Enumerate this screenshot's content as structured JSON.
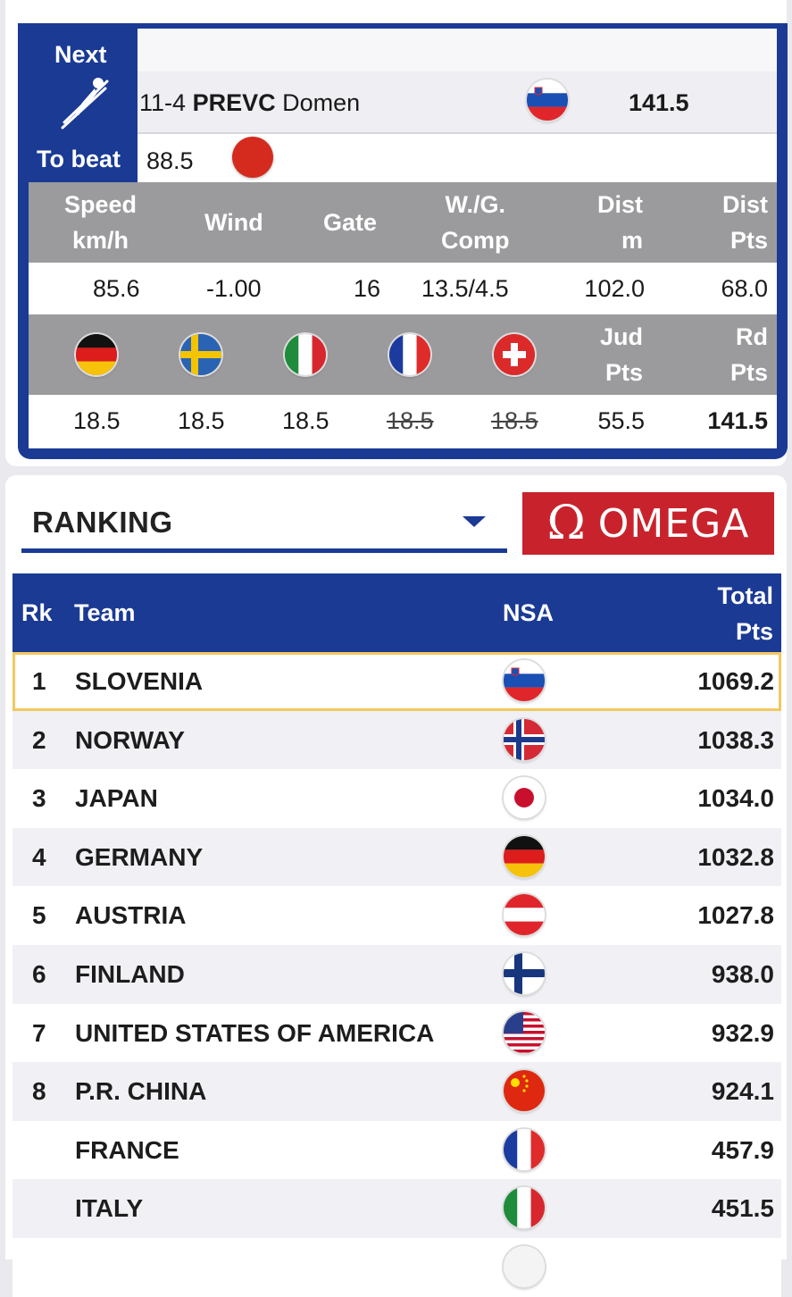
{
  "next_panel": {
    "next_label": "Next",
    "to_beat_label": "To beat",
    "athlete_bib": "11-4",
    "athlete_surname": "PREVC",
    "athlete_firstname": "Domen",
    "athlete_nsa_flag": "slovenia-flag",
    "athlete_score": "141.5",
    "to_beat_value": "88.5",
    "to_beat_indicator_color": "#d42b1e",
    "stats_headers": [
      {
        "line1": "Speed",
        "line2": "km/h"
      },
      {
        "line1": "Wind",
        "line2": ""
      },
      {
        "line1": "Gate",
        "line2": ""
      },
      {
        "line1": "W./G.",
        "line2": "Comp"
      },
      {
        "line1": "Dist",
        "line2": "m"
      },
      {
        "line1": "Dist",
        "line2": "Pts"
      }
    ],
    "stats_values": [
      "85.6",
      "-1.00",
      "16",
      "13.5/4.5",
      "102.0",
      "68.0"
    ],
    "judges": [
      {
        "flag": "germany-flag",
        "score": "18.5",
        "discarded": false
      },
      {
        "flag": "sweden-flag",
        "score": "18.5",
        "discarded": false
      },
      {
        "flag": "italy-flag",
        "score": "18.5",
        "discarded": false
      },
      {
        "flag": "france-flag",
        "score": "18.5",
        "discarded": true
      },
      {
        "flag": "switzerland-flag",
        "score": "18.5",
        "discarded": true
      }
    ],
    "jud_header": {
      "line1": "Jud",
      "line2": "Pts"
    },
    "rd_header": {
      "line1": "Rd",
      "line2": "Pts"
    },
    "jud_pts": "55.5",
    "rd_pts": "141.5"
  },
  "ranking": {
    "selector_label": "RANKING",
    "sponsor": "OMEGA",
    "sponsor_color": "#c8232c",
    "headers": {
      "rk": "Rk",
      "team": "Team",
      "nsa": "NSA",
      "total_line1": "Total",
      "total_line2": "Pts"
    },
    "rows": [
      {
        "rk": "1",
        "team": "SLOVENIA",
        "flag": "slovenia-flag",
        "pts": "1069.2"
      },
      {
        "rk": "2",
        "team": "NORWAY",
        "flag": "norway-flag",
        "pts": "1038.3"
      },
      {
        "rk": "3",
        "team": "JAPAN",
        "flag": "japan-flag",
        "pts": "1034.0"
      },
      {
        "rk": "4",
        "team": "GERMANY",
        "flag": "germany-flag",
        "pts": "1032.8"
      },
      {
        "rk": "5",
        "team": "AUSTRIA",
        "flag": "austria-flag",
        "pts": "1027.8"
      },
      {
        "rk": "6",
        "team": "FINLAND",
        "flag": "finland-flag",
        "pts": "938.0"
      },
      {
        "rk": "7",
        "team": "UNITED STATES OF AMERICA",
        "flag": "usa-flag",
        "pts": "932.9"
      },
      {
        "rk": "8",
        "team": "P.R. CHINA",
        "flag": "china-flag",
        "pts": "924.1"
      },
      {
        "rk": "",
        "team": "FRANCE",
        "flag": "france-flag",
        "pts": "457.9"
      },
      {
        "rk": "",
        "team": "ITALY",
        "flag": "italy-flag",
        "pts": "451.5"
      },
      {
        "rk": "",
        "team": "",
        "flag": "partial-flag",
        "pts": ""
      }
    ]
  }
}
